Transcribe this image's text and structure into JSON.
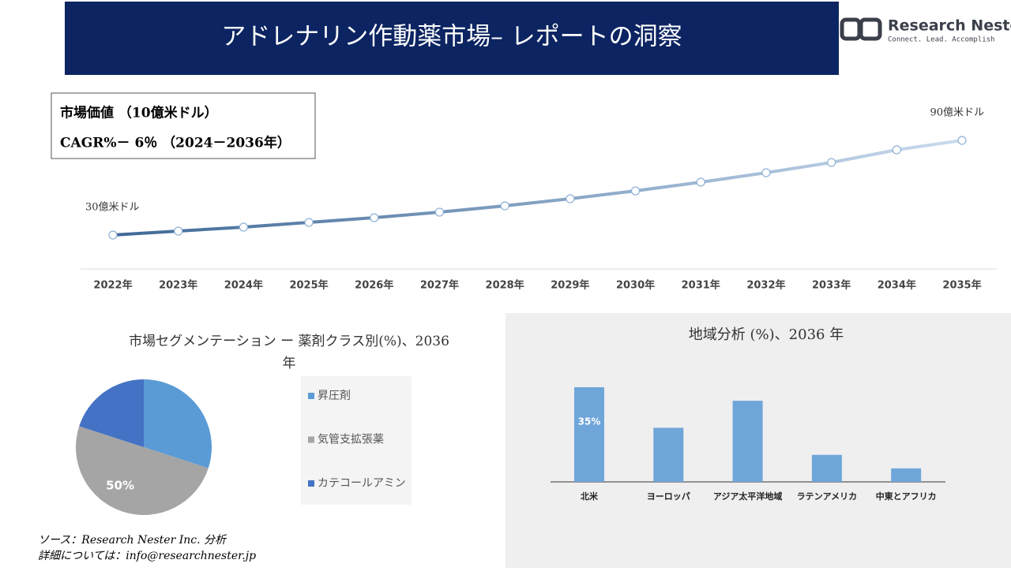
{
  "header": {
    "title": "アドレナリン作動薬市場– レポートの洞察"
  },
  "logo": {
    "name": "Research Nester",
    "tagline": "Connect. Lead. Accomplish"
  },
  "info_box": {
    "lines": [
      "市場価値 （10億米ドル）",
      "CAGR%－ 6％ （2024－2036年）"
    ]
  },
  "chart_data": [
    {
      "type": "line",
      "categories": [
        "2022年",
        "2023年",
        "2024年",
        "2025年",
        "2026年",
        "2027年",
        "2028年",
        "2029年",
        "2030年",
        "2031年",
        "2032年",
        "2033年",
        "2034年",
        "2035年"
      ],
      "values": [
        30,
        32.5,
        35,
        38,
        41,
        44.5,
        48.5,
        53,
        58,
        63.5,
        69.5,
        76,
        84,
        90
      ],
      "annotations": [
        "30億米ドル",
        "90億米ドル"
      ],
      "color_start": "#3e6896",
      "color_end": "#c9dbee"
    },
    {
      "type": "pie",
      "title": "市場セグメンテーション ー 薬剤クラス別(%)、2036年",
      "categories": [
        "昇圧剤",
        "気管支拡張薬",
        "カテコールアミン"
      ],
      "values": [
        30,
        50,
        20
      ],
      "value_labels": [
        null,
        "50%",
        null
      ],
      "colors": [
        "#5b9bd5",
        "#a5a5a5",
        "#4472c4"
      ]
    },
    {
      "type": "bar",
      "title": "地域分析 (%)、2036 年",
      "categories": [
        "北米",
        "ヨーロッパ",
        "アジア太平洋地域",
        "ラテンアメリカ",
        "中東とアフリカ"
      ],
      "values": [
        35,
        20,
        30,
        10,
        5
      ],
      "value_labels": [
        "35%",
        null,
        null,
        null,
        null
      ],
      "color": "#6fa6da"
    }
  ],
  "footer": {
    "lines": [
      "ソース：Research Nester Inc. 分析",
      "詳細については：info@researchnester.jp"
    ]
  }
}
